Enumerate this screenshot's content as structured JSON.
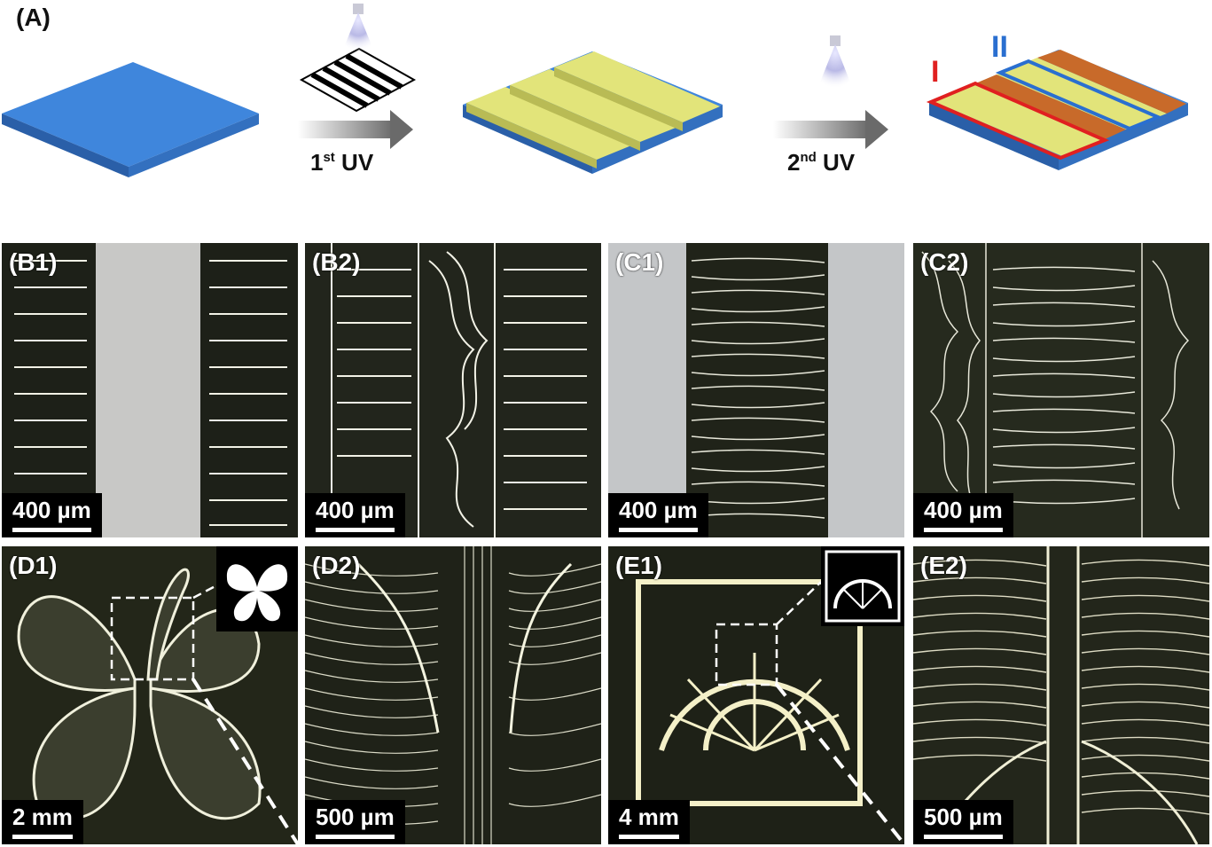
{
  "figure": {
    "panel_a_label": "(A)",
    "first_uv": {
      "text": "1",
      "sup": "st",
      "suffix": " UV"
    },
    "second_uv": {
      "text": "2",
      "sup": "nd",
      "suffix": " UV"
    },
    "region_i": "I",
    "region_ii": "II",
    "colors": {
      "substrate": "#3a7fd6",
      "ridges": "#e4e67a",
      "wrinkles": "#c86a2a",
      "region_i_outline": "#e02020",
      "region_ii_outline": "#2a6fd0"
    }
  },
  "panels": [
    {
      "id": "B1",
      "label": "(B1)",
      "scale": "400 µm"
    },
    {
      "id": "B2",
      "label": "(B2)",
      "scale": "400 µm"
    },
    {
      "id": "C1",
      "label": "(C1)",
      "scale": "400 µm"
    },
    {
      "id": "C2",
      "label": "(C2)",
      "scale": "400 µm"
    },
    {
      "id": "D1",
      "label": "(D1)",
      "scale": "2 mm"
    },
    {
      "id": "D2",
      "label": "(D2)",
      "scale": "500 µm"
    },
    {
      "id": "E1",
      "label": "(E1)",
      "scale": "4 mm"
    },
    {
      "id": "E2",
      "label": "(E2)",
      "scale": "500 µm"
    }
  ]
}
